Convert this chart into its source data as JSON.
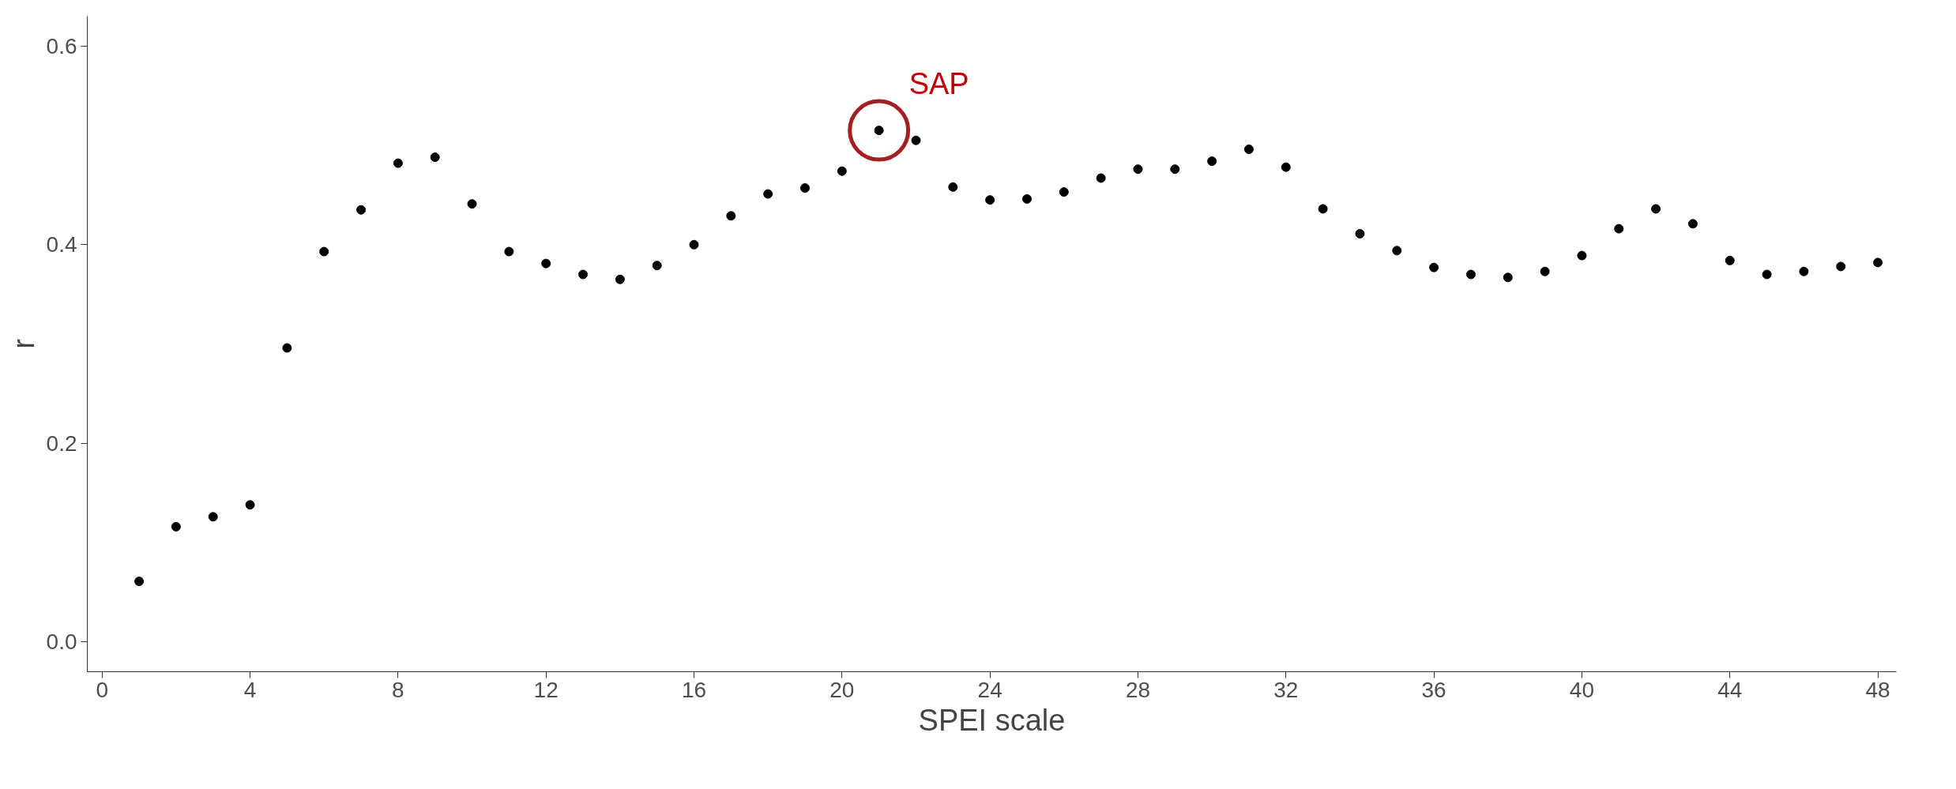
{
  "chart_data": {
    "type": "scatter",
    "xlabel": "SPEI scale",
    "ylabel": "r",
    "x": [
      1,
      2,
      3,
      4,
      5,
      6,
      7,
      8,
      9,
      10,
      11,
      12,
      13,
      14,
      15,
      16,
      17,
      18,
      19,
      20,
      21,
      22,
      23,
      24,
      25,
      26,
      27,
      28,
      29,
      30,
      31,
      32,
      33,
      34,
      35,
      36,
      37,
      38,
      39,
      40,
      41,
      42,
      43,
      44,
      45,
      46,
      47,
      48
    ],
    "series": [
      {
        "color": "#000000",
        "values": [
          0.061,
          0.116,
          0.126,
          0.138,
          0.296,
          0.393,
          0.435,
          0.482,
          0.488,
          0.441,
          0.393,
          0.381,
          0.37,
          0.365,
          0.379,
          0.4,
          0.429,
          0.451,
          0.457,
          0.474,
          0.515,
          0.505,
          0.458,
          0.445,
          0.446,
          0.453,
          0.467,
          0.476,
          0.476,
          0.484,
          0.496,
          0.478,
          0.436,
          0.411,
          0.394,
          0.377,
          0.37,
          0.367,
          0.373,
          0.389,
          0.416,
          0.436,
          0.421,
          0.384,
          0.37,
          0.373,
          0.378,
          0.382
        ]
      }
    ],
    "xlim": [
      -0.4,
      48.5
    ],
    "ylim": [
      -0.03,
      0.63
    ],
    "xticks": [
      0,
      4,
      8,
      12,
      16,
      20,
      24,
      28,
      32,
      36,
      40,
      44,
      48
    ],
    "yticks": [
      {
        "value": 0,
        "label": "0.0"
      },
      {
        "value": 0.2,
        "label": "0.2"
      },
      {
        "value": 0.4,
        "label": "0.4"
      },
      {
        "value": 0.6,
        "label": "0.6"
      }
    ],
    "annotations": [
      {
        "text": "SAP",
        "x": 21,
        "y": 0.515
      }
    ],
    "grid": false,
    "marker": "circle"
  }
}
